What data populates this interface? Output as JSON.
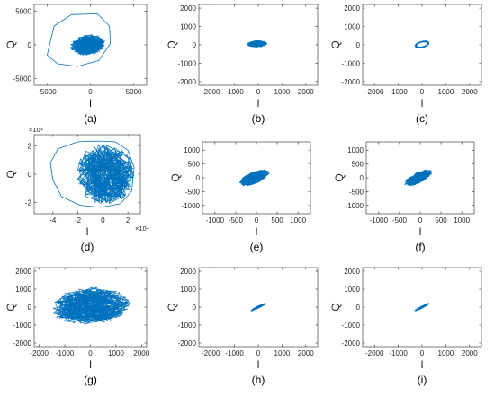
{
  "style": {
    "trace_color": "#0072BD",
    "axis_color": "#262626"
  },
  "chart_data": [
    {
      "id": "a",
      "panel_label": "(a)",
      "type": "line",
      "xlabel": "I",
      "ylabel": "Q",
      "xlim": [
        -6500,
        6500
      ],
      "ylim": [
        -6000,
        6000
      ],
      "xticks": [
        -5000,
        0,
        5000
      ],
      "yticks": [
        -5000,
        0,
        5000
      ],
      "xtick_labels": [
        "-5000",
        "0",
        "5000"
      ],
      "ytick_labels": [
        "-5000",
        "0",
        "5000"
      ],
      "x_exponent": "",
      "y_exponent": "",
      "cloud": {
        "cx": -300,
        "cy": 0,
        "rx": 2100,
        "ry": 1500,
        "tilt": 0.25,
        "density": 0.9
      },
      "outline": [
        [
          -5000,
          -1500
        ],
        [
          -4200,
          2800
        ],
        [
          -2200,
          4500
        ],
        [
          800,
          4600
        ],
        [
          2200,
          2800
        ],
        [
          2300,
          200
        ],
        [
          1000,
          -2300
        ],
        [
          -1500,
          -3200
        ],
        [
          -3800,
          -2800
        ],
        [
          -5000,
          -1500
        ]
      ]
    },
    {
      "id": "b",
      "panel_label": "(b)",
      "type": "line",
      "xlabel": "I",
      "ylabel": "Q",
      "xlim": [
        -2500,
        2500
      ],
      "ylim": [
        -2200,
        2200
      ],
      "xticks": [
        -2000,
        -1000,
        0,
        1000,
        2000
      ],
      "yticks": [
        -2000,
        -1000,
        0,
        1000,
        2000
      ],
      "xtick_labels": [
        "-2000",
        "-1000",
        "0",
        "1000",
        "2000"
      ],
      "ytick_labels": [
        "-2000",
        "-1000",
        "0",
        "1000",
        "2000"
      ],
      "x_exponent": "",
      "y_exponent": "",
      "cloud": {
        "cx": -50,
        "cy": 50,
        "rx": 420,
        "ry": 180,
        "tilt": 0.05,
        "density": 0.85
      }
    },
    {
      "id": "c",
      "panel_label": "(c)",
      "type": "line",
      "xlabel": "I",
      "ylabel": "Q",
      "xlim": [
        -2500,
        2500
      ],
      "ylim": [
        -2200,
        2200
      ],
      "xticks": [
        -2000,
        -1000,
        0,
        1000,
        2000
      ],
      "yticks": [
        -2000,
        -1000,
        0,
        1000,
        2000
      ],
      "xtick_labels": [
        "-2000",
        "-1000",
        "0",
        "1000",
        "2000"
      ],
      "ytick_labels": [
        "-2000",
        "-1000",
        "0",
        "1000",
        "2000"
      ],
      "x_exponent": "",
      "y_exponent": "",
      "cloud": {
        "cx": 0,
        "cy": 20,
        "rx": 320,
        "ry": 170,
        "tilt": 0.35,
        "density": 0.6,
        "ring": true
      }
    },
    {
      "id": "d",
      "panel_label": "(d)",
      "type": "line",
      "xlabel": "I",
      "ylabel": "Q",
      "xlim": [
        -55000,
        30000
      ],
      "ylim": [
        -28000,
        28000
      ],
      "xticks": [
        -40000,
        -20000,
        0,
        20000
      ],
      "yticks": [
        -20000,
        0,
        20000
      ],
      "xtick_labels": [
        "-4",
        "-2",
        "0",
        "2"
      ],
      "ytick_labels": [
        "-2",
        "0",
        "2"
      ],
      "x_exponent": "×10⁴",
      "y_exponent": "×10⁴",
      "cloud": {
        "cx": 2000,
        "cy": 0,
        "rx": 23000,
        "ry": 22000,
        "tilt": 0,
        "density": 1.0
      },
      "outline": [
        [
          -42000,
          8000
        ],
        [
          -36000,
          18000
        ],
        [
          -20000,
          23000
        ],
        [
          -5000,
          23500
        ],
        [
          10000,
          23000
        ],
        [
          20000,
          17000
        ],
        [
          25000,
          5000
        ],
        [
          23000,
          -12000
        ],
        [
          14000,
          -21000
        ],
        [
          -2000,
          -23500
        ],
        [
          -18000,
          -22000
        ],
        [
          -33000,
          -16000
        ],
        [
          -40000,
          -4000
        ],
        [
          -42000,
          8000
        ]
      ]
    },
    {
      "id": "e",
      "panel_label": "(e)",
      "type": "line",
      "xlabel": "I",
      "ylabel": "Q",
      "xlim": [
        -1300,
        1300
      ],
      "ylim": [
        -1300,
        1300
      ],
      "xticks": [
        -1000,
        -500,
        0,
        500,
        1000
      ],
      "yticks": [
        -1000,
        -500,
        0,
        500,
        1000
      ],
      "xtick_labels": [
        "-1000",
        "-500",
        "0",
        "500",
        "1000"
      ],
      "ytick_labels": [
        "-1000",
        "-500",
        "0",
        "500",
        "1000"
      ],
      "x_exponent": "",
      "y_exponent": "",
      "cloud": {
        "cx": -50,
        "cy": 0,
        "rx": 420,
        "ry": 200,
        "tilt": 0.62,
        "density": 0.9
      }
    },
    {
      "id": "f",
      "panel_label": "(f)",
      "type": "line",
      "xlabel": "I",
      "ylabel": "Q",
      "xlim": [
        -1300,
        1300
      ],
      "ylim": [
        -1300,
        1300
      ],
      "xticks": [
        -1000,
        -500,
        0,
        500,
        1000
      ],
      "yticks": [
        -1000,
        -500,
        0,
        500,
        1000
      ],
      "xtick_labels": [
        "-1000",
        "-500",
        "0",
        "500",
        "1000"
      ],
      "ytick_labels": [
        "-1000",
        "-500",
        "0",
        "500",
        "1000"
      ],
      "x_exponent": "",
      "y_exponent": "",
      "cloud": {
        "cx": -50,
        "cy": 0,
        "rx": 420,
        "ry": 170,
        "tilt": 0.7,
        "density": 0.9
      }
    },
    {
      "id": "g",
      "panel_label": "(g)",
      "type": "line",
      "xlabel": "I",
      "ylabel": "Q",
      "xlim": [
        -2200,
        2200
      ],
      "ylim": [
        -2200,
        2200
      ],
      "xticks": [
        -2000,
        -1000,
        0,
        1000,
        2000
      ],
      "yticks": [
        -2000,
        -1000,
        0,
        1000,
        2000
      ],
      "xtick_labels": [
        "-2000",
        "-1000",
        "0",
        "1000",
        "2000"
      ],
      "ytick_labels": [
        "-2000",
        "-1000",
        "0",
        "1000",
        "2000"
      ],
      "x_exponent": "",
      "y_exponent": "",
      "cloud": {
        "cx": 0,
        "cy": 50,
        "rx": 1550,
        "ry": 1050,
        "tilt": 0.15,
        "density": 1.0
      }
    },
    {
      "id": "h",
      "panel_label": "(h)",
      "type": "line",
      "xlabel": "I",
      "ylabel": "Q",
      "xlim": [
        -2500,
        2500
      ],
      "ylim": [
        -2200,
        2200
      ],
      "xticks": [
        -2000,
        -1000,
        0,
        1000,
        2000
      ],
      "yticks": [
        -2000,
        -1000,
        0,
        1000,
        2000
      ],
      "xtick_labels": [
        "-2000",
        "-1000",
        "0",
        "1000",
        "2000"
      ],
      "ytick_labels": [
        "-2000",
        "-1000",
        "0",
        "1000",
        "2000"
      ],
      "x_exponent": "",
      "y_exponent": "",
      "cloud": {
        "cx": 0,
        "cy": 0,
        "rx": 380,
        "ry": 65,
        "tilt": 0.6,
        "density": 0.7
      }
    },
    {
      "id": "i",
      "panel_label": "(i)",
      "type": "line",
      "xlabel": "I",
      "ylabel": "Q",
      "xlim": [
        -2500,
        2500
      ],
      "ylim": [
        -2200,
        2200
      ],
      "xticks": [
        -2000,
        -1000,
        0,
        1000,
        2000
      ],
      "yticks": [
        -2000,
        -1000,
        0,
        1000,
        2000
      ],
      "xtick_labels": [
        "-2000",
        "-1000",
        "0",
        "1000",
        "2000"
      ],
      "ytick_labels": [
        "-2000",
        "-1000",
        "0",
        "1000",
        "2000"
      ],
      "x_exponent": "",
      "y_exponent": "",
      "cloud": {
        "cx": 0,
        "cy": 0,
        "rx": 380,
        "ry": 60,
        "tilt": 0.6,
        "density": 0.7
      }
    }
  ]
}
